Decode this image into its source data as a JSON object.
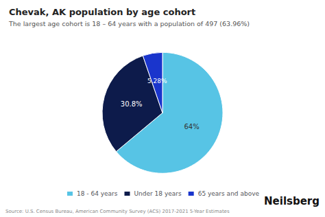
{
  "chart_data": {
    "type": "pie",
    "title": "Chevak, AK population by age cohort",
    "subtitle": "The largest age cohort is 18 – 64 years with a population of 497 (63.96%)",
    "categories": [
      "18 - 64 years",
      "Under 18 years",
      "65 years and above"
    ],
    "values": [
      63.96,
      30.8,
      5.28
    ],
    "value_labels": [
      "64%",
      "30.8%",
      "5.28%"
    ],
    "colors": [
      "#57C4E5",
      "#0D1B4B",
      "#1A35CC"
    ],
    "data_labels": true,
    "legend": "bottom",
    "annotations": [
      "Source: U.S. Census Bureau, American Community Survey (ACS) 2017-2021 5-Year Estimates",
      "Neilsberg"
    ]
  }
}
